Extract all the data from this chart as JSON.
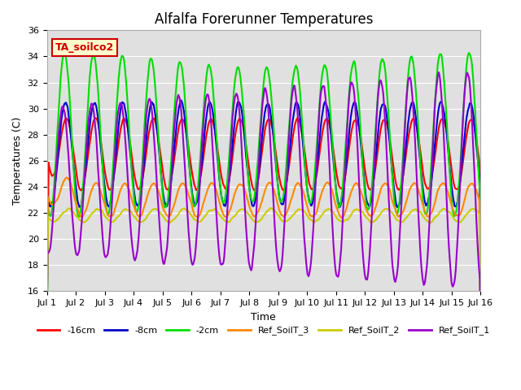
{
  "title": "Alfalfa Forerunner Temperatures",
  "xlabel": "Time",
  "ylabel": "Temperatures (C)",
  "ylim": [
    16,
    36
  ],
  "xlim_days": 15,
  "annotation_text": "TA_soilco2",
  "annotation_fc": "#ffffcc",
  "annotation_ec": "#cc0000",
  "bg_color": "#e0e0e0",
  "legend": [
    "-16cm",
    "-8cm",
    "-2cm",
    "Ref_SoilT_3",
    "Ref_SoilT_2",
    "Ref_SoilT_1"
  ],
  "line_colors": [
    "#ff0000",
    "#0000cc",
    "#00dd00",
    "#ff8800",
    "#cccc00",
    "#9900cc"
  ],
  "xtick_labels": [
    "Jul 1",
    "Jul 2",
    "Jul 3",
    "Jul 4",
    "Jul 5",
    "Jul 6",
    "Jul 7",
    "Jul 8",
    "Jul 9",
    "Jul 10",
    "Jul 11",
    "Jul 12",
    "Jul 13",
    "Jul 14",
    "Jul 15",
    "Jul 16"
  ],
  "xtick_positions": [
    0,
    1,
    2,
    3,
    4,
    5,
    6,
    7,
    8,
    9,
    10,
    11,
    12,
    13,
    14,
    15
  ],
  "figsize": [
    6.4,
    4.8
  ],
  "dpi": 100,
  "title_fontsize": 12,
  "axis_fontsize": 9,
  "tick_fontsize": 8,
  "legend_fontsize": 8,
  "linewidth": 1.5
}
